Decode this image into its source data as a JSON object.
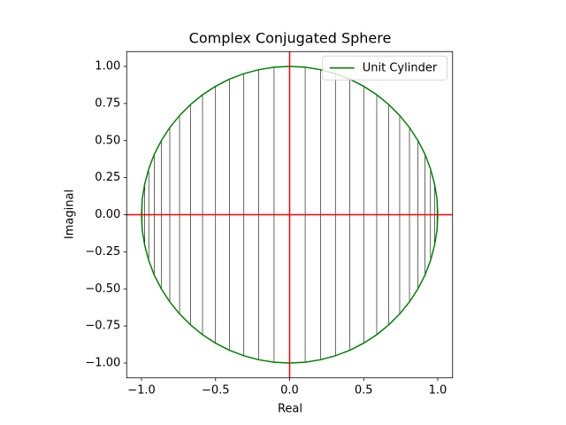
{
  "chart_data": {
    "type": "line",
    "title": "Complex Conjugated Sphere",
    "xlabel": "Real",
    "ylabel": "Imaginal",
    "xlim": [
      -1.1,
      1.1
    ],
    "ylim": [
      -1.1,
      1.1
    ],
    "xticks": [
      {
        "value": -1,
        "label": "−1.0"
      },
      {
        "value": -0.5,
        "label": "−0.5"
      },
      {
        "value": 0,
        "label": "0.0"
      },
      0.5,
      {
        "value": 1,
        "label": "1.0"
      }
    ],
    "yticks": [
      {
        "value": -1,
        "label": "−1.00"
      },
      {
        "value": -0.75,
        "label": "−0.75"
      },
      {
        "value": -0.5,
        "label": "−0.50"
      },
      {
        "value": -0.25,
        "label": "−0.25"
      },
      {
        "value": 0,
        "label": "0.00"
      },
      0.25,
      {
        "value": 0.5,
        "label": "0.50"
      },
      0.75,
      {
        "value": 1,
        "label": "1.00"
      }
    ],
    "legend": "upper right",
    "series": [
      {
        "name": "Unit Cylinder",
        "color": "#008000",
        "x": [
          1,
          0.995,
          0.978,
          0.951,
          0.914,
          0.866,
          0.809,
          0.743,
          0.669,
          0.588,
          0.5,
          0.407,
          0.309,
          0.208,
          0.105,
          0,
          -0.105,
          -0.208,
          -0.309,
          -0.407,
          -0.5,
          -0.588,
          -0.669,
          -0.743,
          -0.809,
          -0.866,
          -0.914,
          -0.951,
          -0.978,
          -0.995,
          -1,
          -0.995,
          -0.978,
          -0.951,
          -0.914,
          -0.866,
          -0.809,
          -0.743,
          -0.669,
          -0.588,
          -0.5,
          -0.407,
          -0.309,
          -0.208,
          -0.105,
          0,
          0.105,
          0.208,
          0.309,
          0.407,
          0.5,
          0.588,
          0.669,
          0.743,
          0.809,
          0.866,
          0.914,
          0.951,
          0.978,
          0.995,
          1
        ],
        "y": [
          0,
          0.105,
          0.208,
          0.309,
          0.407,
          0.5,
          0.588,
          0.669,
          0.743,
          0.809,
          0.866,
          0.914,
          0.951,
          0.978,
          0.995,
          1,
          0.995,
          0.978,
          0.951,
          0.914,
          0.866,
          0.809,
          0.743,
          0.669,
          0.588,
          0.5,
          0.407,
          0.309,
          0.208,
          0.105,
          0,
          -0.105,
          -0.208,
          -0.309,
          -0.407,
          -0.5,
          -0.588,
          -0.669,
          -0.743,
          -0.809,
          -0.866,
          -0.914,
          -0.951,
          -0.978,
          -0.995,
          -1,
          -0.995,
          -0.978,
          -0.951,
          -0.914,
          -0.866,
          -0.809,
          -0.743,
          -0.669,
          -0.588,
          -0.5,
          -0.407,
          -0.309,
          -0.208,
          -0.105,
          0
        ]
      }
    ],
    "conjugate_lines": {
      "color": "#000000",
      "x": [
        0.995,
        0.978,
        0.951,
        0.914,
        0.866,
        0.809,
        0.743,
        0.669,
        0.588,
        0.5,
        0.407,
        0.309,
        0.208,
        0.105,
        0,
        -0.105,
        -0.208,
        -0.309,
        -0.407,
        -0.5,
        -0.588,
        -0.669,
        -0.743,
        -0.809,
        -0.866,
        -0.914,
        -0.951,
        -0.978,
        -0.995
      ],
      "y_top": [
        0.105,
        0.208,
        0.309,
        0.407,
        0.5,
        0.588,
        0.669,
        0.743,
        0.809,
        0.866,
        0.914,
        0.951,
        0.978,
        0.995,
        1,
        0.995,
        0.978,
        0.951,
        0.914,
        0.866,
        0.809,
        0.743,
        0.669,
        0.588,
        0.5,
        0.407,
        0.309,
        0.208,
        0.105
      ],
      "y_bottom": [
        -0.105,
        -0.208,
        -0.309,
        -0.407,
        -0.5,
        -0.588,
        -0.669,
        -0.743,
        -0.809,
        -0.866,
        -0.914,
        -0.951,
        -0.978,
        -0.995,
        -1,
        -0.995,
        -0.978,
        -0.951,
        -0.914,
        -0.866,
        -0.809,
        -0.743,
        -0.669,
        -0.588,
        -0.5,
        -0.407,
        -0.309,
        -0.208,
        -0.105
      ]
    },
    "axis_lines": {
      "color": "#ff0000",
      "x": [
        0
      ],
      "y": [
        0
      ]
    }
  }
}
